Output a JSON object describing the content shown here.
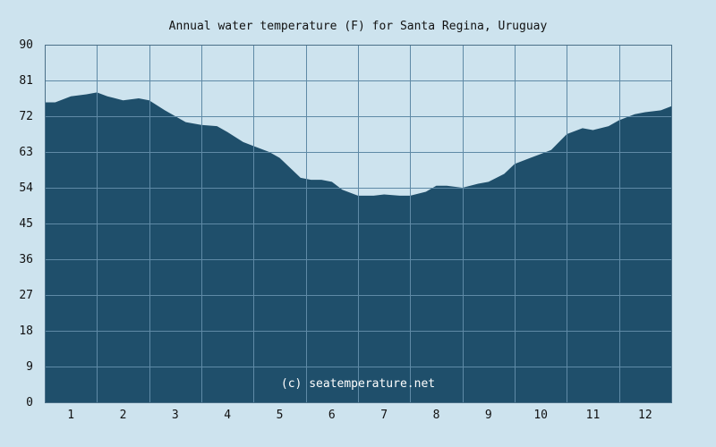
{
  "chart_data": {
    "type": "area",
    "title": "Annual water temperature (F) for Santa Regina, Uruguay",
    "watermark": "(c) seatemperature.net",
    "xlabel": "",
    "ylabel": "",
    "xlim": [
      0.5,
      12.5
    ],
    "ylim": [
      0,
      90
    ],
    "y_ticks": [
      "0",
      "9",
      "18",
      "27",
      "36",
      "45",
      "54",
      "63",
      "72",
      "81",
      "90"
    ],
    "x_ticks": [
      "1",
      "2",
      "3",
      "4",
      "5",
      "6",
      "7",
      "8",
      "9",
      "10",
      "11",
      "12"
    ],
    "grid": true,
    "colors": {
      "area": "#1f4f6b",
      "plot_bg": "#cde3ee",
      "grid": "#5f8aa6",
      "axis": "#4a6f88"
    },
    "series": [
      {
        "x": [
          0.5,
          0.7,
          1.0,
          1.3,
          1.5,
          1.7,
          2.0,
          2.3,
          2.5,
          2.8,
          3.0,
          3.2,
          3.5,
          3.8,
          4.0,
          4.3,
          4.5,
          4.8,
          5.0,
          5.2,
          5.4,
          5.6,
          5.8,
          6.0,
          6.2,
          6.5,
          6.8,
          7.0,
          7.3,
          7.5,
          7.8,
          8.0,
          8.2,
          8.5,
          8.8,
          9.0,
          9.3,
          9.5,
          9.8,
          10.0,
          10.2,
          10.5,
          10.8,
          11.0,
          11.3,
          11.5,
          11.8,
          12.0,
          12.3,
          12.5
        ],
        "values": [
          75.5,
          75.5,
          77,
          77.5,
          78,
          77,
          76,
          76.5,
          76,
          73.5,
          72,
          70.5,
          69.8,
          69.5,
          68,
          65.5,
          64.5,
          63,
          61.5,
          59,
          56.5,
          56,
          56,
          55.5,
          53.5,
          52,
          52,
          52.3,
          52,
          52,
          53,
          54.5,
          54.5,
          54,
          55,
          55.5,
          57.5,
          60,
          61.5,
          62.5,
          63.5,
          67.5,
          69,
          68.5,
          69.5,
          71,
          72.5,
          73,
          73.5,
          74.5
        ]
      }
    ]
  }
}
